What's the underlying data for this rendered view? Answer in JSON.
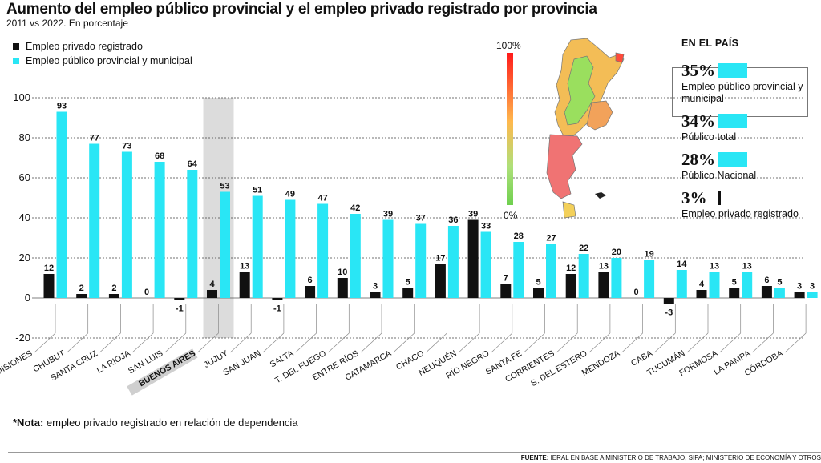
{
  "title": "Aumento del empleo público provincial y el empleo privado registrado por provincia",
  "subtitle": "2011 vs 2022. En porcentaje",
  "legend": {
    "private": "Empleo privado registrado",
    "public": "Empleo público provincial y municipal"
  },
  "colors": {
    "private": "#111111",
    "public": "#29e6f5",
    "highlight": "#dcdcdc"
  },
  "chart_data": {
    "type": "bar",
    "categories": [
      "MISIONES",
      "CHUBUT",
      "SANTA CRUZ",
      "LA RIOJA",
      "SAN LUIS",
      "BUENOS AIRES",
      "JUJUY",
      "SAN JUAN",
      "SALTA",
      "T. DEL FUEGO",
      "ENTRE RÍOS",
      "CATAMARCA",
      "CHACO",
      "NEUQUÉN",
      "RÍO NEGRO",
      "SANTA FE",
      "CORRIENTES",
      "S. DEL ESTERO",
      "MENDOZA",
      "CABA",
      "TUCUMÁN",
      "FORMOSA",
      "LA PAMPA",
      "CÓRDOBA"
    ],
    "highlighted": "BUENOS AIRES",
    "series": [
      {
        "name": "Empleo privado registrado",
        "values": [
          12,
          2,
          2,
          0,
          -1,
          4,
          13,
          -1,
          6,
          10,
          3,
          5,
          17,
          39,
          7,
          5,
          12,
          13,
          0,
          -3,
          4,
          5,
          6,
          3
        ]
      },
      {
        "name": "Empleo público provincial y municipal",
        "values": [
          93,
          77,
          73,
          68,
          64,
          53,
          51,
          49,
          47,
          42,
          39,
          37,
          36,
          33,
          28,
          27,
          22,
          20,
          19,
          14,
          13,
          13,
          5,
          3
        ]
      }
    ],
    "yticks": [
      100,
      80,
      60,
      40,
      20,
      0,
      -20
    ],
    "ylim": [
      -20,
      100
    ],
    "xlabel": "",
    "ylabel": ""
  },
  "color_scale": {
    "max": "100%",
    "min": "0%"
  },
  "country": {
    "title": "EN EL PAÍS",
    "stats": [
      {
        "value": "35%",
        "label": "Empleo público provincial y municipal"
      },
      {
        "value": "34%",
        "label": "Público total"
      },
      {
        "value": "28%",
        "label": "Público Nacional"
      },
      {
        "value": "3%",
        "label": "Empleo privado registrado"
      }
    ]
  },
  "note": {
    "bold": "*Nota:",
    "text": " empleo privado registrado en relación de dependencia"
  },
  "source": {
    "bold": "FUENTE:",
    "text": " IERAL EN BASE A MINISTERIO DE TRABAJO, SIPA; MINISTERIO DE ECONOMÍA Y OTROS"
  }
}
